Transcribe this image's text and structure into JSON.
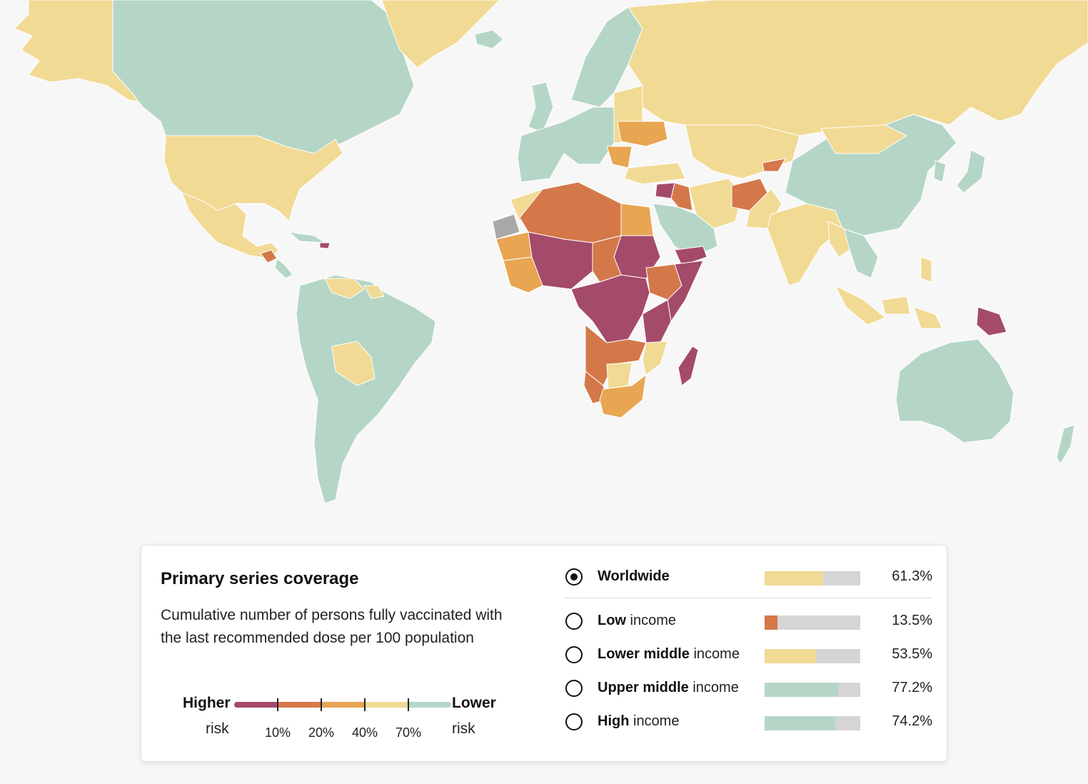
{
  "colors": {
    "ocean": "#f7f7f7",
    "under10": "#a44a6b",
    "10to20": "#d4784a",
    "20to40": "#e8a552",
    "40to70": "#f1da94",
    "over70": "#b5d6c6",
    "nodata": "#a8a8a8",
    "bar_track": "#d5d5d5"
  },
  "panel": {
    "title": "Primary series coverage",
    "description": "Cumulative number of persons fully vaccinated with the last recommended dose per 100 population"
  },
  "legend": {
    "higher": "Higher",
    "higher_sub": "risk",
    "lower": "Lower",
    "lower_sub": "risk",
    "ticks": [
      "10%",
      "20%",
      "40%",
      "70%"
    ]
  },
  "options": [
    {
      "bold": "Worldwide",
      "rest": "",
      "selected": true,
      "value": 61.3,
      "value_label": "61.3%",
      "color": "#f1da94"
    },
    {
      "bold": "Low",
      "rest": " income",
      "selected": false,
      "value": 13.5,
      "value_label": "13.5%",
      "color": "#d4784a"
    },
    {
      "bold": "Lower middle",
      "rest": " income",
      "selected": false,
      "value": 53.5,
      "value_label": "53.5%",
      "color": "#f1da94"
    },
    {
      "bold": "Upper middle",
      "rest": " income",
      "selected": false,
      "value": 77.2,
      "value_label": "77.2%",
      "color": "#b5d6c6"
    },
    {
      "bold": "High",
      "rest": " income",
      "selected": false,
      "value": 74.2,
      "value_label": "74.2%",
      "color": "#b5d6c6"
    }
  ]
}
